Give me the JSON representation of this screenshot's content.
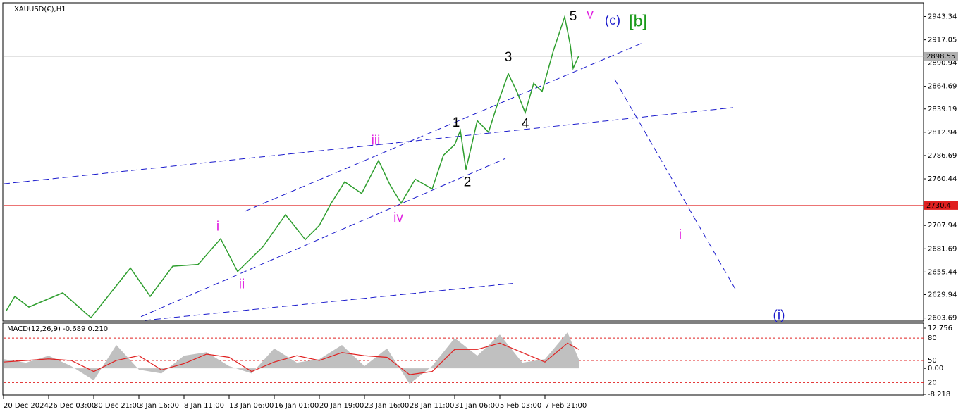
{
  "chart_data": [
    {
      "type": "line",
      "title": "XAUUSD(€),H1",
      "x": [
        1,
        4,
        9,
        21,
        31,
        39,
        45,
        52,
        60,
        69,
        77,
        83,
        92,
        100,
        107,
        112,
        116,
        121,
        127,
        133,
        137,
        141,
        146,
        152,
        156,
        160,
        162,
        164,
        168,
        172,
        175,
        179,
        182,
        185,
        188,
        191,
        195,
        199,
        201,
        202,
        204
      ],
      "series": [
        {
          "color": "#2e9e2e",
          "values": [
            2612,
            2628,
            2616,
            2632,
            2604,
            2636,
            2660,
            2628,
            2662,
            2664,
            2693,
            2656,
            2684,
            2720,
            2692,
            2708,
            2732,
            2757,
            2744,
            2781,
            2754,
            2733,
            2760,
            2749,
            2787,
            2799,
            2815,
            2771,
            2826,
            2813,
            2843,
            2879,
            2859,
            2835,
            2868,
            2859,
            2905,
            2943,
            2911,
            2885,
            2899
          ]
        }
      ],
      "xlim": [
        0,
        326.25
      ],
      "ylim": [
        2601,
        2958
      ],
      "xticks": [
        {
          "value": 0,
          "label": "20 Dec 2024"
        },
        {
          "value": 16,
          "label": "26 Dec 03:00"
        },
        {
          "value": 32,
          "label": "30 Dec 21:00"
        },
        {
          "value": 48,
          "label": "3 Jan 16:00"
        },
        {
          "value": 64,
          "label": "8 Jan 11:00"
        },
        {
          "value": 80,
          "label": "13 Jan 06:00"
        },
        {
          "value": 96,
          "label": "16 Jan 01:00"
        },
        {
          "value": 112,
          "label": "20 Jan 19:00"
        },
        {
          "value": 128,
          "label": "23 Jan 16:00"
        },
        {
          "value": 144,
          "label": "28 Jan 11:00"
        },
        {
          "value": 160,
          "label": "31 Jan 06:00"
        },
        {
          "value": 176,
          "label": "5 Feb 03:00"
        },
        {
          "value": 192,
          "label": "7 Feb 21:00"
        }
      ],
      "yticks": [
        2943.34,
        2917.05,
        2890.94,
        2864.69,
        2839.19,
        2812.94,
        2786.69,
        2760.44,
        2707.94,
        2681.69,
        2655.44,
        2629.94,
        2603.69
      ],
      "hlines": [
        {
          "value": 2898.55,
          "color": "#b0b0b0"
        },
        {
          "value": 2730.4,
          "color": "#e02020"
        }
      ],
      "trendlines": [
        {
          "x": [
            0,
            258.75
          ],
          "y": [
            2754.8,
            2840.7
          ],
          "color": "#1a1acc"
        },
        {
          "x": [
            85.5,
            226.25
          ],
          "y": [
            2723.8,
            2913.1
          ],
          "color": "#1a1acc"
        },
        {
          "x": [
            48.75,
            178
          ],
          "y": [
            2605.2,
            2783.4
          ],
          "color": "#1a1acc"
        },
        {
          "x": [
            50,
            180.5
          ],
          "y": [
            2601,
            2642.6
          ],
          "color": "#1a1acc"
        },
        {
          "x": [
            216.75,
            259.5
          ],
          "y": [
            2872.5,
            2636.3
          ],
          "color": "#1a1acc"
        }
      ],
      "annotations": [
        {
          "text": "5",
          "x": 202,
          "y": 2943,
          "color": "#000000"
        },
        {
          "text": "v",
          "x": 208,
          "y": 2945,
          "color": "#e020e0"
        },
        {
          "text": "(c)",
          "x": 216,
          "y": 2938,
          "color": "#1a1acc"
        },
        {
          "text": "[b]",
          "x": 225,
          "y": 2937,
          "color": "#1a9a1a"
        },
        {
          "text": "3",
          "x": 179,
          "y": 2897,
          "color": "#000000"
        },
        {
          "text": "1",
          "x": 160.5,
          "y": 2823,
          "color": "#000000"
        },
        {
          "text": "2",
          "x": 164.5,
          "y": 2756,
          "color": "#000000"
        },
        {
          "text": "4",
          "x": 185,
          "y": 2822,
          "color": "#000000"
        },
        {
          "text": "iii",
          "x": 132,
          "y": 2803,
          "color": "#e020e0"
        },
        {
          "text": "iv",
          "x": 140,
          "y": 2716,
          "color": "#e020e0"
        },
        {
          "text": "i",
          "x": 76,
          "y": 2706,
          "color": "#e020e0"
        },
        {
          "text": "ii",
          "x": 84.5,
          "y": 2641,
          "color": "#e020e0"
        },
        {
          "text": "i",
          "x": 240,
          "y": 2697,
          "color": "#e020e0"
        },
        {
          "text": "(i)",
          "x": 275,
          "y": 2606,
          "color": "#1a1acc"
        }
      ]
    },
    {
      "type": "macd",
      "title": "MACD(12,26,9) -0.689 0.210",
      "x": [
        0,
        8,
        16,
        24,
        32,
        40,
        48,
        56,
        64,
        72,
        80,
        88,
        96,
        104,
        112,
        120,
        128,
        136,
        144,
        152,
        160,
        168,
        176,
        184,
        192,
        200,
        204
      ],
      "series": [
        {
          "color": "#c0c0c0",
          "values": [
            2.9,
            1.8,
            4,
            0.7,
            -3.8,
            7.4,
            -0.4,
            -1.6,
            4,
            5.1,
            0.7,
            -1.6,
            6.3,
            1.8,
            2.9,
            7.4,
            0.7,
            6.3,
            -4.9,
            0.7,
            9.6,
            4,
            10.7,
            1.8,
            2.9,
            11.4,
            2.9
          ]
        },
        {
          "color": "#e02020",
          "values": [
            2,
            2.5,
            3,
            2.5,
            -1,
            2.5,
            4,
            -0.5,
            1.5,
            4.5,
            3.5,
            -1,
            2,
            4,
            2.5,
            5,
            4,
            3.5,
            -2,
            -1,
            6,
            6,
            8,
            5,
            2,
            8,
            6
          ]
        }
      ],
      "ylim": [
        -8.218,
        12.756
      ],
      "yticks": [
        12.756,
        {
          "value": 9.6,
          "label": "80",
          "dashed": true
        },
        {
          "value": 2.5,
          "label": "50",
          "dashed": true
        },
        {
          "value": 0,
          "label": "0.00"
        },
        {
          "value": -4.5,
          "label": "20",
          "dashed": true
        },
        -8.218
      ]
    }
  ]
}
